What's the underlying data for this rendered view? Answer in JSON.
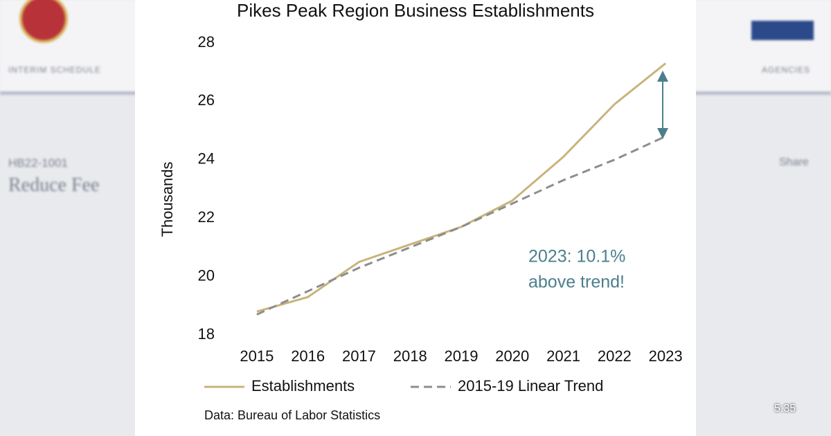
{
  "background": {
    "nav_left": "INTERIM SCHEDULE",
    "nav_right": "AGENCIES",
    "bill_id": "HB22-1001",
    "bill_title": "Reduce Fee",
    "share": "Share",
    "clock": "5:35"
  },
  "chart_data": {
    "type": "line",
    "title": "Pikes Peak Region Business Establishments",
    "y_label": "Thousands",
    "categories": [
      "2015",
      "2016",
      "2017",
      "2018",
      "2019",
      "2020",
      "2021",
      "2022",
      "2023"
    ],
    "series": [
      {
        "name": "Establishments",
        "color": "#c9b37b",
        "style": "solid",
        "values": [
          18.8,
          19.3,
          20.5,
          21.1,
          21.7,
          22.6,
          24.1,
          25.9,
          27.3
        ]
      },
      {
        "name": "2015-19 Linear Trend",
        "color": "#8d8d8d",
        "style": "dashed",
        "values": [
          18.7,
          19.5,
          20.3,
          21.0,
          21.7,
          22.5,
          23.3,
          24.0,
          24.8
        ]
      }
    ],
    "ylim": [
      18,
      28
    ],
    "yticks": [
      18,
      20,
      22,
      24,
      26,
      28
    ],
    "grid": false,
    "annotation_lines": [
      "2023: 10.1%",
      "above trend!"
    ],
    "annotation_color": "#4b7f8c",
    "source": "Data: Bureau of Labor Statistics"
  }
}
